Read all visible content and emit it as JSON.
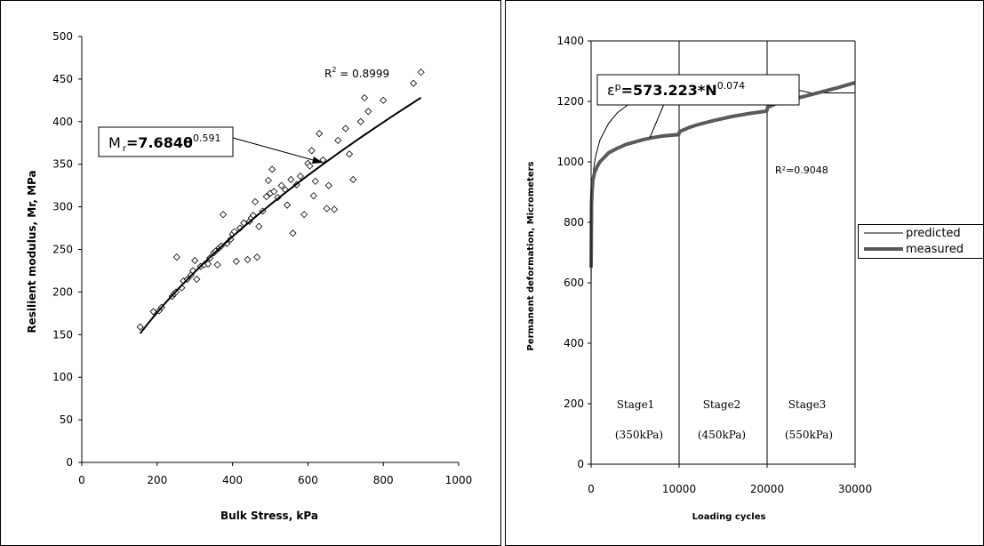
{
  "chart_data": [
    {
      "type": "scatter",
      "title": "",
      "xlabel": "Bulk Stress, kPa",
      "ylabel": "Resilient modulus, Mr, MPa",
      "xlim": [
        0,
        1000
      ],
      "ylim": [
        0,
        500
      ],
      "xticks": [
        "0",
        "200",
        "400",
        "600",
        "800",
        "1000"
      ],
      "yticks": [
        "0",
        "50",
        "100",
        "150",
        "200",
        "250",
        "300",
        "350",
        "400",
        "450",
        "500"
      ],
      "grid": false,
      "marker": "diamond-open",
      "points": [
        [
          155,
          159
        ],
        [
          190,
          177
        ],
        [
          205,
          178
        ],
        [
          212,
          182
        ],
        [
          240,
          195
        ],
        [
          245,
          198
        ],
        [
          250,
          200
        ],
        [
          252,
          241
        ],
        [
          265,
          205
        ],
        [
          270,
          213
        ],
        [
          280,
          215
        ],
        [
          290,
          220
        ],
        [
          295,
          225
        ],
        [
          300,
          237
        ],
        [
          305,
          215
        ],
        [
          315,
          230
        ],
        [
          325,
          232
        ],
        [
          335,
          233
        ],
        [
          340,
          240
        ],
        [
          350,
          246
        ],
        [
          355,
          248
        ],
        [
          360,
          232
        ],
        [
          365,
          252
        ],
        [
          370,
          254
        ],
        [
          375,
          291
        ],
        [
          385,
          257
        ],
        [
          395,
          262
        ],
        [
          400,
          268
        ],
        [
          405,
          271
        ],
        [
          410,
          236
        ],
        [
          420,
          275
        ],
        [
          430,
          281
        ],
        [
          440,
          238
        ],
        [
          445,
          283
        ],
        [
          450,
          287
        ],
        [
          455,
          290
        ],
        [
          460,
          306
        ],
        [
          465,
          241
        ],
        [
          470,
          277
        ],
        [
          480,
          295
        ],
        [
          490,
          312
        ],
        [
          495,
          331
        ],
        [
          500,
          316
        ],
        [
          505,
          344
        ],
        [
          510,
          318
        ],
        [
          520,
          311
        ],
        [
          530,
          325
        ],
        [
          540,
          320
        ],
        [
          545,
          302
        ],
        [
          555,
          332
        ],
        [
          560,
          269
        ],
        [
          570,
          326
        ],
        [
          580,
          336
        ],
        [
          590,
          291
        ],
        [
          600,
          351
        ],
        [
          605,
          348
        ],
        [
          610,
          366
        ],
        [
          615,
          313
        ],
        [
          620,
          330
        ],
        [
          630,
          386
        ],
        [
          640,
          355
        ],
        [
          650,
          298
        ],
        [
          655,
          325
        ],
        [
          670,
          297
        ],
        [
          680,
          378
        ],
        [
          700,
          392
        ],
        [
          710,
          362
        ],
        [
          720,
          332
        ],
        [
          740,
          400
        ],
        [
          750,
          428
        ],
        [
          760,
          412
        ],
        [
          800,
          425
        ],
        [
          880,
          445
        ],
        [
          900,
          458
        ]
      ],
      "trendline": {
        "type": "power",
        "coef": 7.684,
        "exp": 0.591,
        "x_range": [
          155,
          900
        ]
      },
      "annotations": {
        "r2": "R",
        "r2_sup": "2",
        "r2_value": " = 0.8999",
        "eq_lhs": "M",
        "eq_sub": "r",
        "eq_mid": "=7.684θ",
        "eq_sup": "0.591"
      }
    },
    {
      "type": "line",
      "title": "",
      "xlabel": "Loading cycles",
      "ylabel": "Permanent deformation, Micrometers",
      "xlim": [
        0,
        30000
      ],
      "ylim": [
        0,
        1400
      ],
      "xticks": [
        "0",
        "10000",
        "20000",
        "30000"
      ],
      "yticks": [
        "0",
        "200",
        "400",
        "600",
        "800",
        "1000",
        "1200",
        "1400"
      ],
      "grid": false,
      "legend": "right",
      "stage_boundaries": [
        10000,
        20000
      ],
      "stages": [
        {
          "name": "Stage1",
          "pressure": "(350kPa)"
        },
        {
          "name": "Stage2",
          "pressure": "(450kPa)"
        },
        {
          "name": "Stage3",
          "pressure": "(550kPa)"
        }
      ],
      "series": [
        {
          "name": "predicted",
          "x": [
            1,
            50,
            150,
            300,
            500,
            1000,
            2000,
            3000,
            5000,
            7000,
            10000,
            15000,
            20000,
            25000,
            30000
          ],
          "y": [
            573,
            859,
            931,
            980,
            1018,
            1072,
            1128,
            1163,
            1206,
            1238,
            1263,
            1261,
            1259,
            1228,
            1228
          ]
        },
        {
          "name": "measured",
          "x": [
            0,
            50,
            100,
            200,
            400,
            700,
            1000,
            1500,
            2000,
            3000,
            4000,
            5000,
            6000,
            7000,
            8000,
            9000,
            9950,
            10050,
            11000,
            12000,
            14000,
            16000,
            18000,
            19950,
            20050,
            21000,
            22000,
            24000,
            26000,
            28000,
            30000
          ],
          "y": [
            650,
            860,
            900,
            940,
            965,
            985,
            1000,
            1015,
            1030,
            1045,
            1058,
            1066,
            1074,
            1080,
            1085,
            1088,
            1090,
            1100,
            1112,
            1122,
            1137,
            1150,
            1160,
            1168,
            1180,
            1192,
            1200,
            1215,
            1230,
            1245,
            1262
          ]
        }
      ],
      "annotations": {
        "r2_value": "R²=0.9048",
        "eq_lhs": "ε",
        "eq_sup1": "p",
        "eq_mid": "=573.223*N",
        "eq_sup2": "0.074"
      }
    }
  ]
}
